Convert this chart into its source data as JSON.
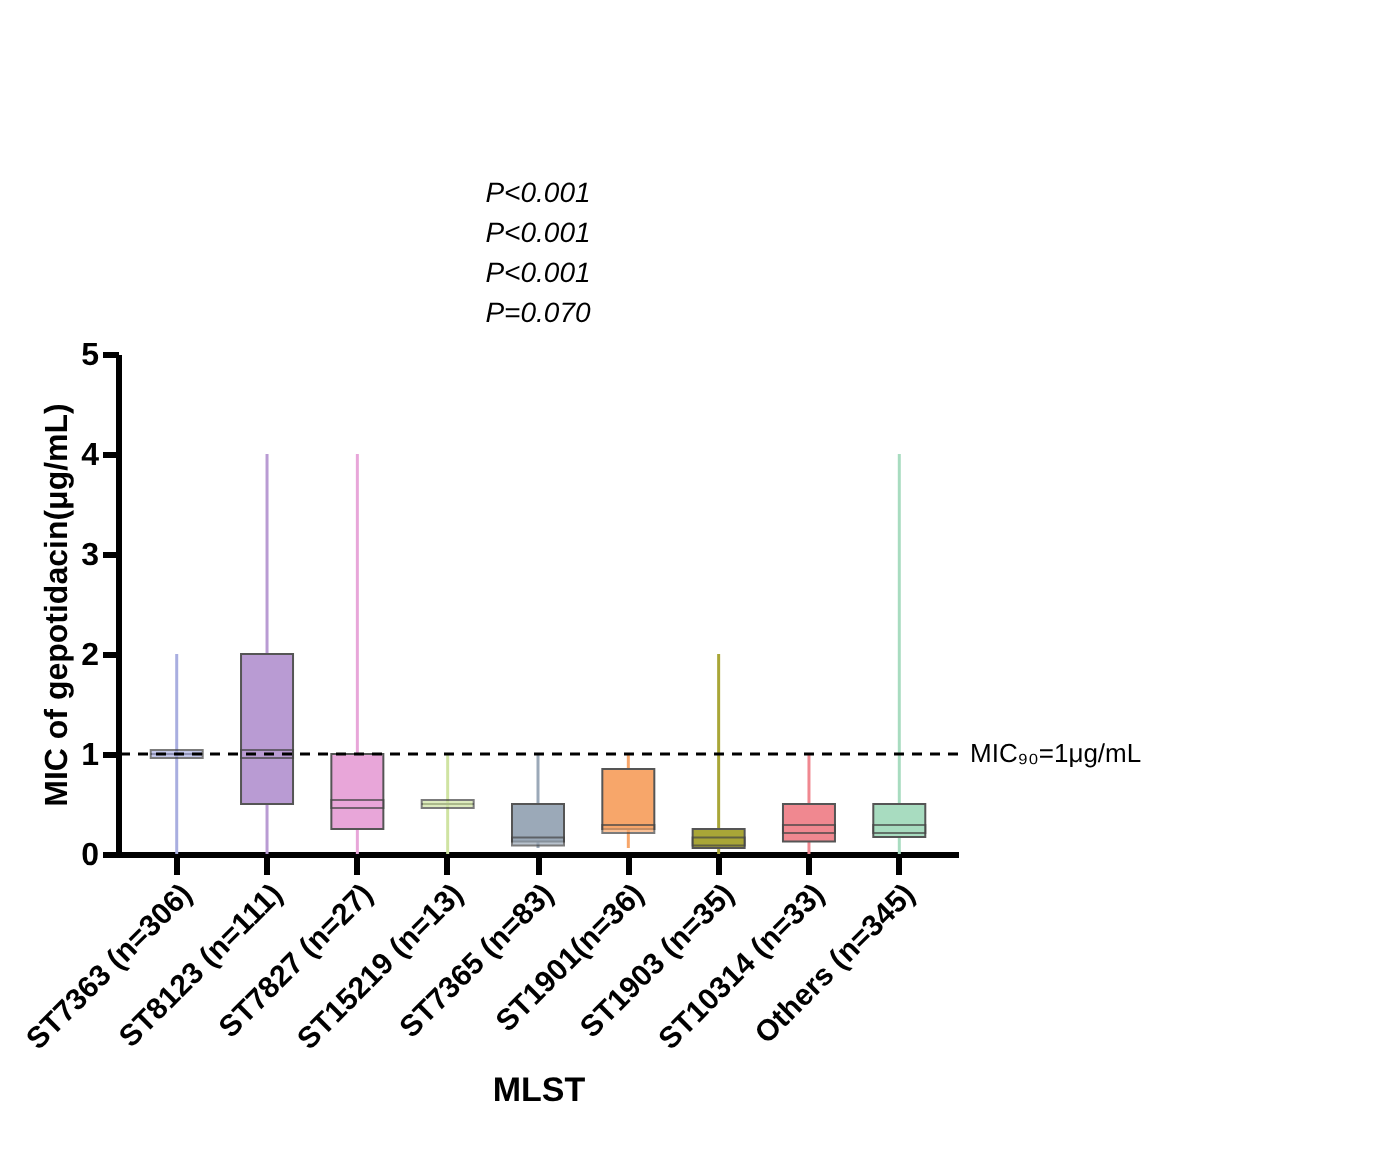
{
  "chart_data": {
    "type": "box",
    "xlabel": "MLST",
    "ylabel": "MIC of gepotidacin(μg/mL)",
    "categories": [
      "ST7363 (n=306)",
      "ST8123 (n=111)",
      "ST7827 (n=27)",
      "ST15219 (n=13)",
      "ST7365 (n=83)",
      "ST1901(n=36)",
      "ST1903 (n=35)",
      "ST10314 (n=33)",
      "Others (n=345)"
    ],
    "colors": [
      "#a9aee0",
      "#b99bd3",
      "#e8a6d9",
      "#cfe3a2",
      "#9ba9b8",
      "#f7a66a",
      "#a9a637",
      "#f08890",
      "#a8dcc0"
    ],
    "boxes": [
      {
        "low": 0,
        "q1": 1,
        "median": 1,
        "q3": 1,
        "high": 2
      },
      {
        "low": 0,
        "q1": 0.5,
        "median": 1,
        "q3": 2,
        "high": 4
      },
      {
        "low": 0,
        "q1": 0.25,
        "median": 0.5,
        "q3": 1,
        "high": 4
      },
      {
        "low": 0,
        "q1": 0.5,
        "median": 0.5,
        "q3": 0.5,
        "high": 1
      },
      {
        "low": 0.06,
        "q1": 0.125,
        "median": 0.125,
        "q3": 0.5,
        "high": 1
      },
      {
        "low": 0.06,
        "q1": 0.25,
        "median": 0.25,
        "q3": 0.85,
        "high": 1
      },
      {
        "low": 0,
        "q1": 0.06,
        "median": 0.125,
        "q3": 0.25,
        "high": 2
      },
      {
        "low": 0,
        "q1": 0.125,
        "median": 0.25,
        "q3": 0.5,
        "high": 1
      },
      {
        "low": 0,
        "q1": 0.17,
        "median": 0.25,
        "q3": 0.5,
        "high": 4
      }
    ],
    "ylim": [
      0,
      5
    ],
    "yticks": [
      0,
      1,
      2,
      3,
      4,
      5
    ],
    "grid": false,
    "ref_lines": [
      {
        "axis": "y",
        "value": 1,
        "label": "MIC₉₀=1μg/mL",
        "line_style": "dashed",
        "color": "#000000"
      }
    ],
    "annotations": [
      "P<0.001",
      "P<0.001",
      "P<0.001",
      "P=0.070"
    ]
  }
}
